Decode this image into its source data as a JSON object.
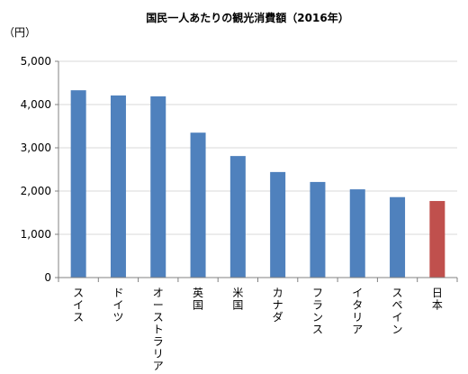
{
  "chart_data": {
    "type": "bar",
    "title": "国民一人あたりの観光消費額（2016年）",
    "ylabel": "（円）",
    "categories": [
      "スイス",
      "ドイツ",
      "オーストラリア",
      "英国",
      "米国",
      "カナダ",
      "フランス",
      "イタリア",
      "スペイン",
      "日本"
    ],
    "values": [
      4330,
      4210,
      4190,
      3350,
      2810,
      2440,
      2210,
      2040,
      1860,
      1770
    ],
    "ylim": [
      0,
      5000
    ],
    "yticks": [
      0,
      1000,
      2000,
      3000,
      4000,
      5000
    ],
    "ytick_labels": [
      "0",
      "1,000",
      "2,000",
      "3,000",
      "4,000",
      "5,000"
    ],
    "grid": true,
    "legend": "none",
    "colors": {
      "default_bar": "#4F81BD",
      "highlight_bar": "#C0504D",
      "grid": "#D9D9D9",
      "axis": "#808080"
    },
    "highlight_category": "日本"
  }
}
